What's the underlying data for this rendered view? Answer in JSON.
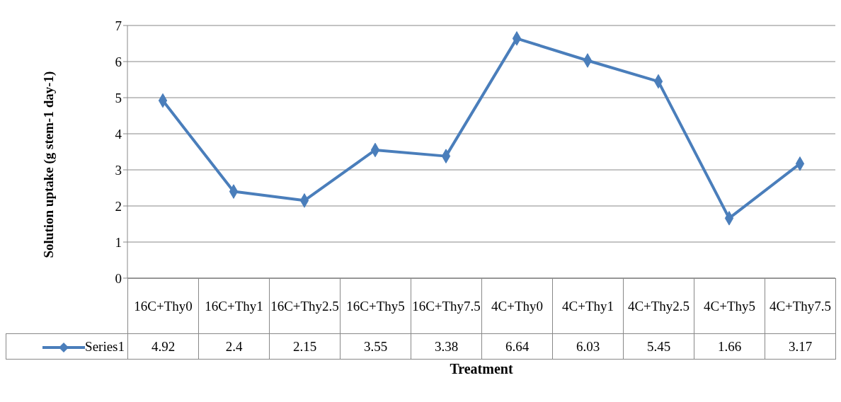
{
  "chart_data": {
    "type": "line",
    "xlabel": "Treatment",
    "ylabel": "Solution uptake (g stem-1 day-1)",
    "categories": [
      "16C+Thy0",
      "16C+Thy1",
      "16C+Thy2.5",
      "16C+Thy5",
      "16C+Thy7.5",
      "4C+Thy0",
      "4C+Thy1",
      "4C+Thy2.5",
      "4C+Thy5",
      "4C+Thy7.5"
    ],
    "series": [
      {
        "name": "Series1",
        "color": "#4a7ebb",
        "values": [
          4.92,
          2.4,
          2.15,
          3.55,
          3.38,
          6.64,
          6.03,
          5.45,
          1.66,
          3.17
        ]
      }
    ],
    "ylim": [
      0,
      7
    ],
    "yticks": [
      0,
      1,
      2,
      3,
      4,
      5,
      6,
      7
    ],
    "grid": "y",
    "marker": "diamond",
    "line_style": "solid",
    "legend": "bottom",
    "data_labels": true
  }
}
